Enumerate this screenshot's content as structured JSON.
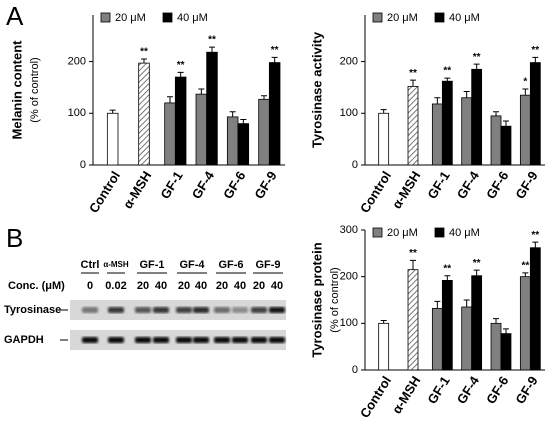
{
  "panel_labels": [
    "A",
    "B"
  ],
  "chart_data": [
    {
      "type": "bar",
      "y_label": "Melanin content",
      "y_sublabel": "(% of control)",
      "categories": [
        "Control",
        "α-MSH",
        "GF-1",
        "GF-4",
        "GF-6",
        "GF-9"
      ],
      "ylim": [
        0,
        290
      ],
      "yticks": [
        0,
        100,
        200
      ],
      "series": [
        {
          "color": "#ffffff",
          "hatched": [
            false,
            true,
            false,
            false,
            false,
            false
          ],
          "values": [
            100,
            197,
            null,
            null,
            null,
            null
          ],
          "errors": [
            6,
            8,
            null,
            null,
            null,
            null
          ],
          "stars": [
            null,
            "**",
            null,
            null,
            null,
            null
          ]
        },
        {
          "name": "20 μM",
          "color": "#808080",
          "values": [
            null,
            null,
            120,
            137,
            93,
            127
          ],
          "errors": [
            null,
            null,
            12,
            10,
            10,
            7
          ],
          "stars": [
            null,
            null,
            null,
            null,
            null,
            null
          ]
        },
        {
          "name": "40 μM",
          "color": "#000000",
          "values": [
            null,
            null,
            170,
            218,
            80,
            198
          ],
          "errors": [
            null,
            null,
            9,
            10,
            8,
            10
          ],
          "stars": [
            null,
            null,
            "**",
            "**",
            null,
            "**"
          ]
        }
      ]
    },
    {
      "type": "bar",
      "y_label": "Tyrosinase activity",
      "categories": [
        "Control",
        "α-MSH",
        "GF-1",
        "GF-4",
        "GF-6",
        "GF-9"
      ],
      "ylim": [
        0,
        290
      ],
      "yticks": [
        0,
        100,
        200
      ],
      "series": [
        {
          "color": "#ffffff",
          "hatched": [
            false,
            true,
            false,
            false,
            false,
            false
          ],
          "values": [
            100,
            152,
            null,
            null,
            null,
            null
          ],
          "errors": [
            7,
            12,
            null,
            null,
            null,
            null
          ],
          "stars": [
            null,
            "**",
            null,
            null,
            null,
            null
          ]
        },
        {
          "name": "20 μM",
          "color": "#808080",
          "values": [
            null,
            null,
            118,
            130,
            95,
            135
          ],
          "errors": [
            null,
            null,
            12,
            12,
            8,
            12
          ],
          "stars": [
            null,
            null,
            null,
            null,
            null,
            "*"
          ]
        },
        {
          "name": "40 μM",
          "color": "#000000",
          "values": [
            null,
            null,
            162,
            185,
            75,
            198
          ],
          "errors": [
            null,
            null,
            6,
            10,
            10,
            10
          ],
          "stars": [
            null,
            null,
            "**",
            "**",
            null,
            "**"
          ]
        }
      ]
    },
    {
      "type": "bar",
      "y_label": "Tyrosinase protein",
      "y_sublabel": "(% of control)",
      "categories": [
        "Control",
        "α-MSH",
        "GF-1",
        "GF-4",
        "GF-6",
        "GF-9"
      ],
      "ylim": [
        0,
        300
      ],
      "yticks": [
        0,
        100,
        200,
        300
      ],
      "series": [
        {
          "color": "#ffffff",
          "hatched": [
            false,
            true,
            false,
            false,
            false,
            false
          ],
          "values": [
            100,
            215,
            null,
            null,
            null,
            null
          ],
          "errors": [
            6,
            20,
            null,
            null,
            null,
            null
          ],
          "stars": [
            null,
            "**",
            null,
            null,
            null,
            null
          ]
        },
        {
          "name": "20 μM",
          "color": "#808080",
          "values": [
            null,
            null,
            132,
            135,
            100,
            200
          ],
          "errors": [
            null,
            null,
            15,
            15,
            10,
            8
          ],
          "stars": [
            null,
            null,
            null,
            null,
            null,
            "**"
          ]
        },
        {
          "name": "40 μM",
          "color": "#000000",
          "values": [
            null,
            null,
            192,
            202,
            78,
            262
          ],
          "errors": [
            null,
            null,
            10,
            12,
            10,
            12
          ],
          "stars": [
            null,
            null,
            "**",
            "**",
            null,
            "**"
          ]
        }
      ]
    }
  ],
  "blot": {
    "groups": [
      "Ctrl",
      "α-MSH",
      "GF-1",
      "GF-4",
      "GF-6",
      "GF-9"
    ],
    "conc_label": "Conc. (μM)",
    "concentrations": [
      "0",
      "0.02",
      "20",
      "40",
      "20",
      "40",
      "20",
      "40",
      "20",
      "40"
    ],
    "rows": [
      "Tyrosinase",
      "GAPDH"
    ]
  }
}
